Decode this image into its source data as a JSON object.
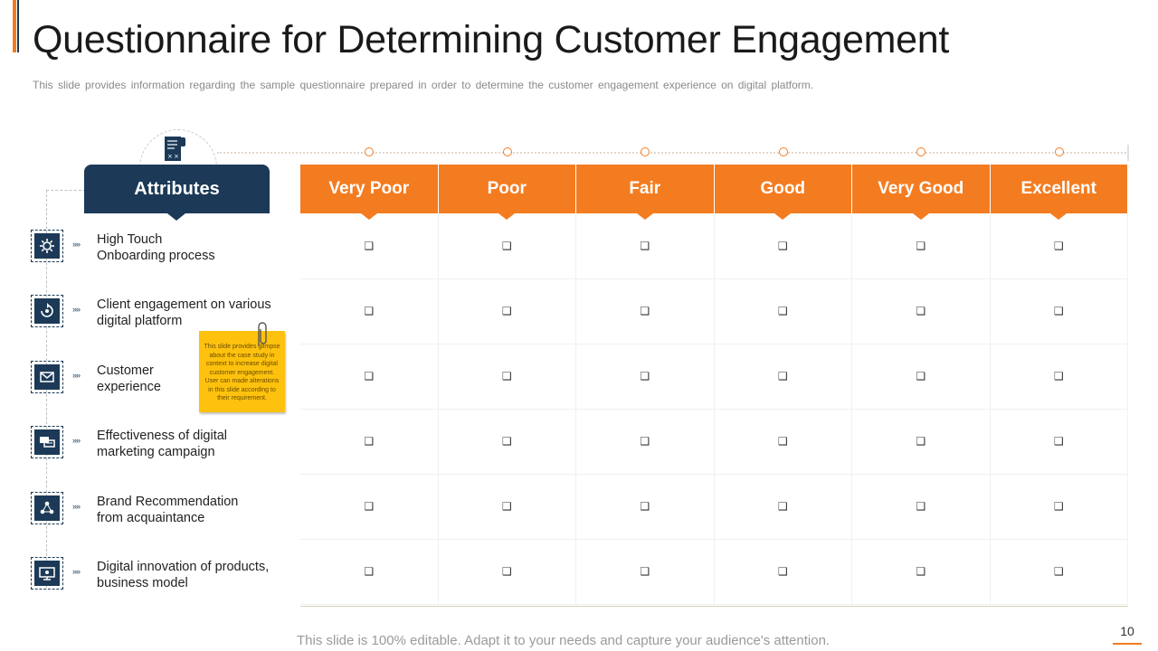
{
  "title": "Questionnaire for Determining Customer Engagement",
  "subtitle": "This slide provides information regarding the sample questionnaire prepared in order to determine the customer engagement experience on digital platform.",
  "attributes_header": "Attributes",
  "ratings": [
    {
      "label": "Very Poor"
    },
    {
      "label": "Poor"
    },
    {
      "label": "Fair"
    },
    {
      "label": "Good"
    },
    {
      "label": "Very Good"
    },
    {
      "label": "Excellent"
    }
  ],
  "checkbox_glyph": "❑",
  "attributes": [
    {
      "line1": "High Touch",
      "line2": "Onboarding process",
      "icon": "gear-cluster-icon"
    },
    {
      "line1": "Client engagement on various",
      "line2": "digital platform",
      "icon": "engagement-cycle-icon"
    },
    {
      "line1": "Customer",
      "line2": "experience",
      "icon": "envelope-icon"
    },
    {
      "line1": "Effectiveness of digital",
      "line2": "marketing campaign",
      "icon": "chat-bubbles-icon"
    },
    {
      "line1": "Brand Recommendation",
      "line2": "from acquaintance",
      "icon": "network-people-icon"
    },
    {
      "line1": "Digital innovation of products,",
      "line2": "business model",
      "icon": "monitor-icon"
    }
  ],
  "arrow_glyph": "»»",
  "sticky_note": "This slide provides glimpse about the case study in context to increase digital customer engagement. User can made alterations in this slide according to their requirement.",
  "footer": "This slide is 100% editable. Adapt it to your needs and capture your audience's attention.",
  "page_number": "10",
  "colors": {
    "accent": "#f47c20",
    "navy": "#1c3a57",
    "note": "#fec20e"
  }
}
